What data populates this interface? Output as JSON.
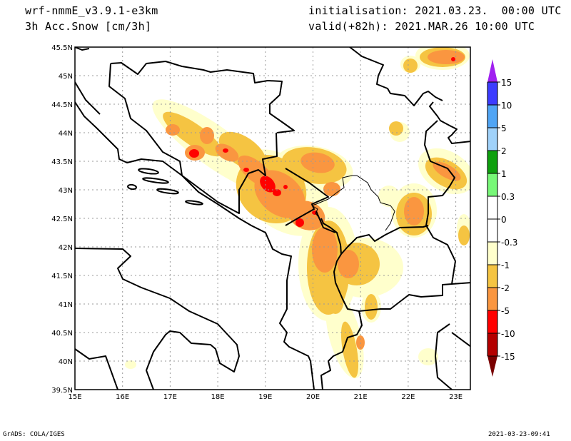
{
  "header": {
    "model": "wrf-nmmE_v3.9.1-e3km",
    "variable": "3h Acc.Snow [cm/3h]",
    "initialisation": "initialisation: 2021.03.23.  00:00 UTC",
    "valid": "valid(+82h): 2021.MAR.26 10:00 UTC"
  },
  "map": {
    "lat_labels": [
      "45.5N",
      "45N",
      "44.5N",
      "44N",
      "43.5N",
      "43N",
      "42.5N",
      "42N",
      "41.5N",
      "41N",
      "40.5N",
      "40N",
      "39.5N"
    ],
    "lon_labels": [
      "15E",
      "16E",
      "17E",
      "18E",
      "19E",
      "20E",
      "21E",
      "22E",
      "23E"
    ],
    "lat_range": [
      39.5,
      45.5
    ],
    "lon_range": [
      15,
      23.3
    ]
  },
  "colorbar": {
    "labels": [
      "15",
      "10",
      "5",
      "2",
      "1",
      "0.3",
      "0",
      "-0.3",
      "-1",
      "-2",
      "-5",
      "-10",
      "-15"
    ],
    "colors": {
      "top_arrow": "#a020f0",
      "bins": [
        "#3c3cff",
        "#50a5f5",
        "#a0d2fa",
        "#0ea00e",
        "#78f878",
        "#ffffff",
        "#ffffff",
        "#ffffcc",
        "#f5c442",
        "#fa9640",
        "#ff0000",
        "#b40000"
      ],
      "bottom_arrow": "#7a0000"
    }
  },
  "footer": {
    "left": "GrADS: COLA/IGES",
    "right": "2021-03-23-09:41"
  }
}
